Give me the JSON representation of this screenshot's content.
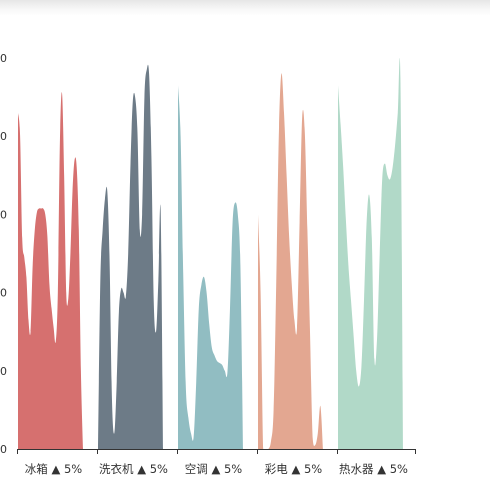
{
  "chart_data": {
    "type": "area",
    "ylim": [
      0,
      1000
    ],
    "yticks": [
      {
        "value": 0,
        "label": "0"
      },
      {
        "value": 200,
        "label": "0"
      },
      {
        "value": 400,
        "label": "0"
      },
      {
        "value": 600,
        "label": "0"
      },
      {
        "value": 800,
        "label": "0"
      },
      {
        "value": 1000,
        "label": "0"
      }
    ],
    "categories": [
      {
        "label": "冰箱 ▲ 5%",
        "color": "#d6706f",
        "points": [
          [
            0,
            860
          ],
          [
            1,
            800
          ],
          [
            2,
            540
          ],
          [
            3,
            490
          ],
          [
            4,
            440
          ],
          [
            5,
            330
          ],
          [
            6,
            300
          ],
          [
            7,
            470
          ],
          [
            8,
            560
          ],
          [
            9,
            605
          ],
          [
            10,
            615
          ],
          [
            11,
            615
          ],
          [
            12,
            615
          ],
          [
            13,
            600
          ],
          [
            14,
            545
          ],
          [
            15,
            420
          ],
          [
            16,
            360
          ],
          [
            17,
            310
          ],
          [
            18,
            275
          ],
          [
            19,
            400
          ],
          [
            20,
            790
          ],
          [
            21,
            910
          ],
          [
            22,
            700
          ],
          [
            23,
            400
          ],
          [
            24,
            385
          ],
          [
            25,
            500
          ],
          [
            26,
            660
          ],
          [
            27,
            740
          ],
          [
            28,
            720
          ],
          [
            29,
            560
          ],
          [
            30,
            200
          ],
          [
            31,
            0
          ]
        ]
      },
      {
        "label": "洗衣机 ▲ 5%",
        "color": "#6d7b87",
        "points": [
          [
            0,
            0
          ],
          [
            1,
            430
          ],
          [
            2,
            560
          ],
          [
            3,
            640
          ],
          [
            4,
            660
          ],
          [
            5,
            480
          ],
          [
            6,
            130
          ],
          [
            7,
            40
          ],
          [
            8,
            160
          ],
          [
            9,
            350
          ],
          [
            10,
            410
          ],
          [
            11,
            400
          ],
          [
            12,
            390
          ],
          [
            13,
            500
          ],
          [
            14,
            730
          ],
          [
            15,
            890
          ],
          [
            16,
            900
          ],
          [
            17,
            810
          ],
          [
            18,
            560
          ],
          [
            19,
            600
          ],
          [
            20,
            900
          ],
          [
            21,
            970
          ],
          [
            22,
            960
          ],
          [
            23,
            750
          ],
          [
            24,
            380
          ],
          [
            25,
            300
          ],
          [
            26,
            430
          ],
          [
            27,
            610
          ],
          [
            28,
            0
          ]
        ]
      },
      {
        "label": "空调 ▲ 5%",
        "color": "#91bdc2",
        "points": [
          [
            0,
            930
          ],
          [
            1,
            800
          ],
          [
            2,
            450
          ],
          [
            3,
            160
          ],
          [
            4,
            80
          ],
          [
            5,
            40
          ],
          [
            6,
            30
          ],
          [
            7,
            170
          ],
          [
            8,
            360
          ],
          [
            9,
            420
          ],
          [
            10,
            440
          ],
          [
            11,
            400
          ],
          [
            12,
            320
          ],
          [
            13,
            260
          ],
          [
            14,
            240
          ],
          [
            15,
            225
          ],
          [
            16,
            220
          ],
          [
            17,
            215
          ],
          [
            18,
            200
          ],
          [
            19,
            195
          ],
          [
            20,
            360
          ],
          [
            21,
            580
          ],
          [
            22,
            630
          ],
          [
            23,
            600
          ],
          [
            24,
            470
          ],
          [
            25,
            0
          ]
        ]
      },
      {
        "label": "彩电 ▲ 5%",
        "color": "#e3a791",
        "points": [
          [
            0,
            600
          ],
          [
            1,
            400
          ],
          [
            2,
            0
          ],
          [
            3,
            0
          ],
          [
            4,
            0
          ],
          [
            5,
            20
          ],
          [
            6,
            100
          ],
          [
            7,
            420
          ],
          [
            8,
            800
          ],
          [
            9,
            960
          ],
          [
            10,
            860
          ],
          [
            11,
            700
          ],
          [
            12,
            540
          ],
          [
            13,
            420
          ],
          [
            14,
            330
          ],
          [
            15,
            310
          ],
          [
            16,
            580
          ],
          [
            17,
            850
          ],
          [
            18,
            810
          ],
          [
            19,
            560
          ],
          [
            20,
            300
          ],
          [
            21,
            30
          ],
          [
            22,
            10
          ],
          [
            23,
            40
          ],
          [
            24,
            110
          ],
          [
            25,
            0
          ]
        ]
      },
      {
        "label": "热水器 ▲ 5%",
        "color": "#b1d9c8",
        "points": [
          [
            0,
            930
          ],
          [
            1,
            830
          ],
          [
            2,
            720
          ],
          [
            3,
            590
          ],
          [
            4,
            470
          ],
          [
            5,
            380
          ],
          [
            6,
            290
          ],
          [
            7,
            200
          ],
          [
            8,
            160
          ],
          [
            9,
            210
          ],
          [
            10,
            380
          ],
          [
            11,
            580
          ],
          [
            12,
            650
          ],
          [
            13,
            540
          ],
          [
            14,
            230
          ],
          [
            15,
            280
          ],
          [
            16,
            490
          ],
          [
            17,
            690
          ],
          [
            18,
            730
          ],
          [
            19,
            700
          ],
          [
            20,
            690
          ],
          [
            21,
            720
          ],
          [
            22,
            780
          ],
          [
            23,
            860
          ],
          [
            24,
            950
          ],
          [
            25,
            0
          ]
        ]
      }
    ]
  }
}
